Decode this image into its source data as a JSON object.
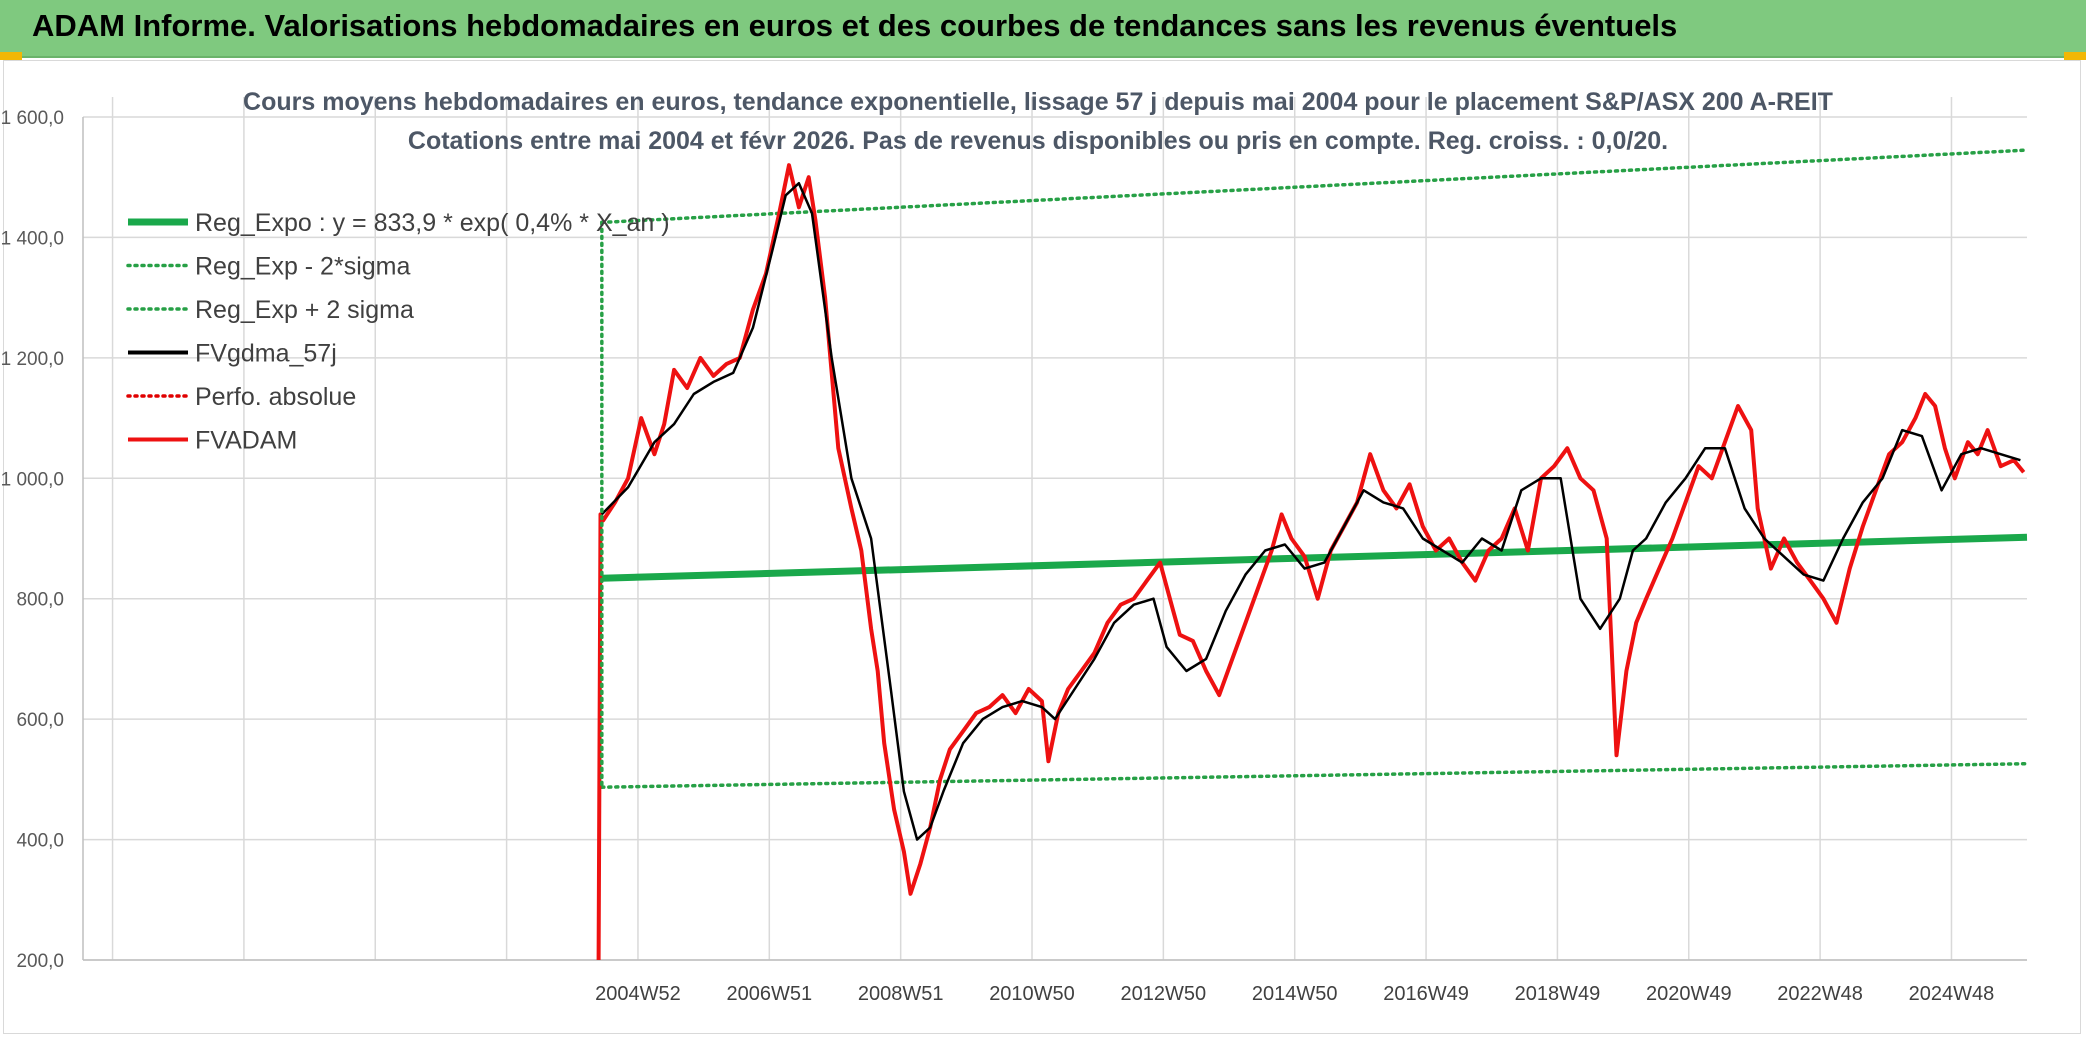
{
  "banner": {
    "title": "ADAM Informe. Valorisations hebdomadaires en euros et des courbes de tendances sans les revenus éventuels"
  },
  "colors": {
    "banner_bg": "#7fc97f",
    "reg_expo": "#1aa84b",
    "sigma": "#27a046",
    "gdma": "#000000",
    "perfo": "#e00000",
    "fvadam": "#ee1111",
    "grid": "#d9d9d9"
  },
  "chart_data": {
    "type": "line",
    "title_line1": "Cours moyens hebdomadaires en euros, tendance exponentielle, lissage 57 j depuis mai 2004 pour le placement S&P/ASX 200 A-REIT",
    "title_line2": "Cotations entre mai 2004 et févr 2026. Pas de revenus disponibles ou pris en compte. Reg. croiss. : 0,0/20.",
    "ylim": [
      200,
      1600
    ],
    "yticks": [
      {
        "v": 200,
        "label": "200,0"
      },
      {
        "v": 400,
        "label": "400,0"
      },
      {
        "v": 600,
        "label": "600,0"
      },
      {
        "v": 800,
        "label": "800,0"
      },
      {
        "v": 1000,
        "label": "1 000,0"
      },
      {
        "v": 1200,
        "label": "1 200,0"
      },
      {
        "v": 1400,
        "label": "1 400,0"
      },
      {
        "v": 1600,
        "label": "1 600,0"
      }
    ],
    "xlim": [
      1996.5,
      2026.1
    ],
    "xticks": [
      {
        "v": 2004.95,
        "label": "2004W52"
      },
      {
        "v": 2006.95,
        "label": "2006W51"
      },
      {
        "v": 2008.95,
        "label": "2008W51"
      },
      {
        "v": 2010.95,
        "label": "2010W50"
      },
      {
        "v": 2012.95,
        "label": "2012W50"
      },
      {
        "v": 2014.95,
        "label": "2014W50"
      },
      {
        "v": 2016.95,
        "label": "2016W49"
      },
      {
        "v": 2018.95,
        "label": "2018W49"
      },
      {
        "v": 2020.95,
        "label": "2020W49"
      },
      {
        "v": 2022.95,
        "label": "2022W48"
      },
      {
        "v": 2024.95,
        "label": "2024W48"
      }
    ],
    "grid": true,
    "legend_position": "top-left",
    "legend": [
      {
        "label": "Reg_Expo : y = 833,9 * exp( 0,4% * X_an )",
        "style": "thick-solid",
        "color": "#1aa84b"
      },
      {
        "label": "Reg_Exp - 2*sigma",
        "style": "dotted",
        "color": "#27a046"
      },
      {
        "label": "Reg_Exp + 2 sigma",
        "style": "dotted",
        "color": "#27a046"
      },
      {
        "label": "FVgdma_57j",
        "style": "solid",
        "color": "#000000"
      },
      {
        "label": "Perfo. absolue",
        "style": "dotted",
        "color": "#e00000"
      },
      {
        "label": "FVADAM",
        "style": "solid",
        "color": "#ee1111"
      }
    ],
    "series": [
      {
        "name": "Reg_Expo : y = 833,9 * exp( 0,4% * X_an )",
        "x": [
          2004.4,
          2026.1
        ],
        "y": [
          834,
          902
        ]
      },
      {
        "name": "Reg_Exp - 2*sigma",
        "x": [
          2004.4,
          2026.1
        ],
        "y": [
          487,
          526
        ]
      },
      {
        "name": "Reg_Exp + 2 sigma",
        "x": [
          2004.4,
          2026.1
        ],
        "y": [
          1425,
          1545
        ]
      },
      {
        "name": "FVgdma_57j",
        "x": [
          2004.4,
          2004.8,
          2005.2,
          2005.5,
          2005.8,
          2006.1,
          2006.4,
          2006.7,
          2007.0,
          2007.2,
          2007.4,
          2007.6,
          2007.9,
          2008.2,
          2008.5,
          2008.8,
          2009.0,
          2009.2,
          2009.4,
          2009.6,
          2009.9,
          2010.2,
          2010.5,
          2010.8,
          2011.1,
          2011.3,
          2011.6,
          2011.9,
          2012.2,
          2012.5,
          2012.8,
          2013.0,
          2013.3,
          2013.6,
          2013.9,
          2014.2,
          2014.5,
          2014.8,
          2015.1,
          2015.4,
          2015.7,
          2016.0,
          2016.3,
          2016.6,
          2016.9,
          2017.2,
          2017.5,
          2017.8,
          2018.1,
          2018.4,
          2018.7,
          2019.0,
          2019.3,
          2019.6,
          2019.9,
          2020.1,
          2020.3,
          2020.6,
          2020.9,
          2021.2,
          2021.5,
          2021.8,
          2022.1,
          2022.4,
          2022.7,
          2023.0,
          2023.3,
          2023.6,
          2023.9,
          2024.2,
          2024.5,
          2024.8,
          2025.1,
          2025.4,
          2025.7,
          2026.0
        ],
        "y": [
          940,
          985,
          1060,
          1090,
          1140,
          1160,
          1175,
          1250,
          1380,
          1470,
          1490,
          1440,
          1200,
          1000,
          900,
          650,
          480,
          400,
          420,
          480,
          560,
          600,
          620,
          630,
          620,
          600,
          650,
          700,
          760,
          790,
          800,
          720,
          680,
          700,
          780,
          840,
          880,
          890,
          850,
          860,
          920,
          980,
          960,
          950,
          900,
          880,
          860,
          900,
          880,
          980,
          1000,
          1000,
          800,
          750,
          800,
          880,
          900,
          960,
          1000,
          1050,
          1050,
          950,
          900,
          870,
          840,
          830,
          900,
          960,
          1000,
          1080,
          1070,
          980,
          1040,
          1050,
          1040,
          1030
        ]
      },
      {
        "name": "FVADAM",
        "x": [
          2004.35,
          2004.38,
          2004.42,
          2004.6,
          2004.8,
          2005.0,
          2005.2,
          2005.35,
          2005.5,
          2005.7,
          2005.9,
          2006.1,
          2006.3,
          2006.5,
          2006.7,
          2006.9,
          2007.1,
          2007.25,
          2007.4,
          2007.55,
          2007.65,
          2007.8,
          2008.0,
          2008.2,
          2008.35,
          2008.5,
          2008.6,
          2008.7,
          2008.85,
          2009.0,
          2009.1,
          2009.25,
          2009.4,
          2009.55,
          2009.7,
          2009.9,
          2010.1,
          2010.3,
          2010.5,
          2010.7,
          2010.9,
          2011.1,
          2011.2,
          2011.35,
          2011.5,
          2011.7,
          2011.9,
          2012.1,
          2012.3,
          2012.5,
          2012.7,
          2012.9,
          2013.1,
          2013.2,
          2013.4,
          2013.6,
          2013.8,
          2014.0,
          2014.2,
          2014.4,
          2014.6,
          2014.75,
          2014.9,
          2015.1,
          2015.3,
          2015.5,
          2015.7,
          2015.9,
          2016.1,
          2016.3,
          2016.5,
          2016.7,
          2016.9,
          2017.1,
          2017.3,
          2017.5,
          2017.7,
          2017.9,
          2018.1,
          2018.3,
          2018.5,
          2018.7,
          2018.9,
          2019.1,
          2019.3,
          2019.5,
          2019.7,
          2019.85,
          2020.0,
          2020.15,
          2020.3,
          2020.5,
          2020.7,
          2020.9,
          2021.1,
          2021.3,
          2021.5,
          2021.7,
          2021.9,
          2022.0,
          2022.2,
          2022.4,
          2022.6,
          2022.8,
          2023.0,
          2023.2,
          2023.4,
          2023.6,
          2023.8,
          2024.0,
          2024.2,
          2024.4,
          2024.55,
          2024.7,
          2024.85,
          2025.0,
          2025.2,
          2025.35,
          2025.5,
          2025.7,
          2025.9,
          2026.05
        ],
        "y": [
          200,
          940,
          930,
          960,
          1000,
          1100,
          1040,
          1090,
          1180,
          1150,
          1200,
          1170,
          1190,
          1200,
          1280,
          1340,
          1440,
          1520,
          1450,
          1500,
          1430,
          1300,
          1050,
          950,
          880,
          750,
          680,
          560,
          450,
          380,
          310,
          360,
          420,
          500,
          550,
          580,
          610,
          620,
          640,
          610,
          650,
          630,
          530,
          610,
          650,
          680,
          710,
          760,
          790,
          800,
          830,
          860,
          780,
          740,
          730,
          680,
          640,
          700,
          760,
          820,
          880,
          940,
          900,
          870,
          800,
          880,
          920,
          960,
          1040,
          980,
          950,
          990,
          920,
          880,
          900,
          860,
          830,
          880,
          900,
          950,
          880,
          1000,
          1020,
          1050,
          1000,
          980,
          900,
          540,
          680,
          760,
          800,
          850,
          900,
          960,
          1020,
          1000,
          1060,
          1120,
          1080,
          950,
          850,
          900,
          860,
          830,
          800,
          760,
          850,
          920,
          980,
          1040,
          1060,
          1100,
          1140,
          1120,
          1050,
          1000,
          1060,
          1040,
          1080,
          1020,
          1030,
          1010
        ]
      }
    ]
  }
}
